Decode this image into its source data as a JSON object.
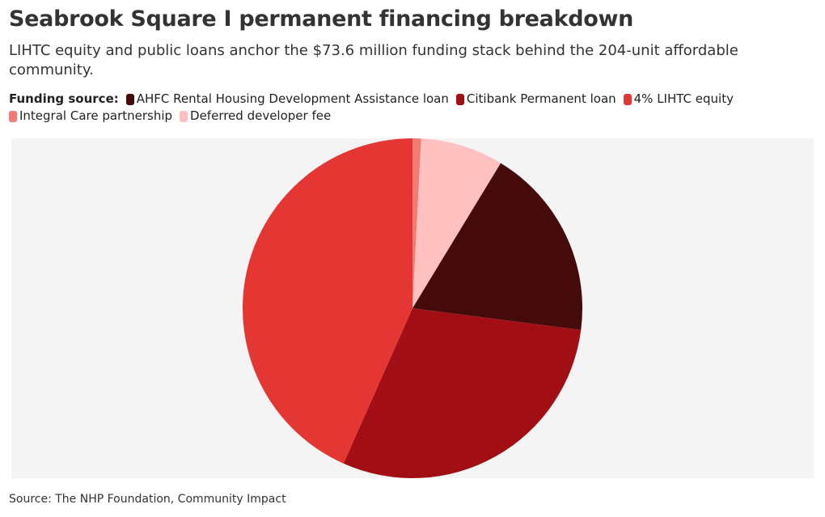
{
  "chart_data": {
    "type": "pie",
    "title": "Seabrook Square I permanent financing breakdown",
    "subtitle": "LIHTC equity and public loans anchor the $73.6 million funding stack behind the 204-unit affordable community.",
    "legend_title": "Funding source:",
    "categories": [
      "AHFC Rental Housing Development Assistance loan",
      "Citibank Permanent loan",
      "4% LIHTC equity",
      "Integral Care partnership",
      "Deferred developer fee"
    ],
    "values": [
      13.5,
      21.8,
      31.9,
      0.6,
      5.8
    ],
    "colors": [
      "#450a0a",
      "#a10f15",
      "#e43633",
      "#f47a74",
      "#fec1c0"
    ],
    "source": "Source: The NHP Foundation, Community Impact"
  }
}
